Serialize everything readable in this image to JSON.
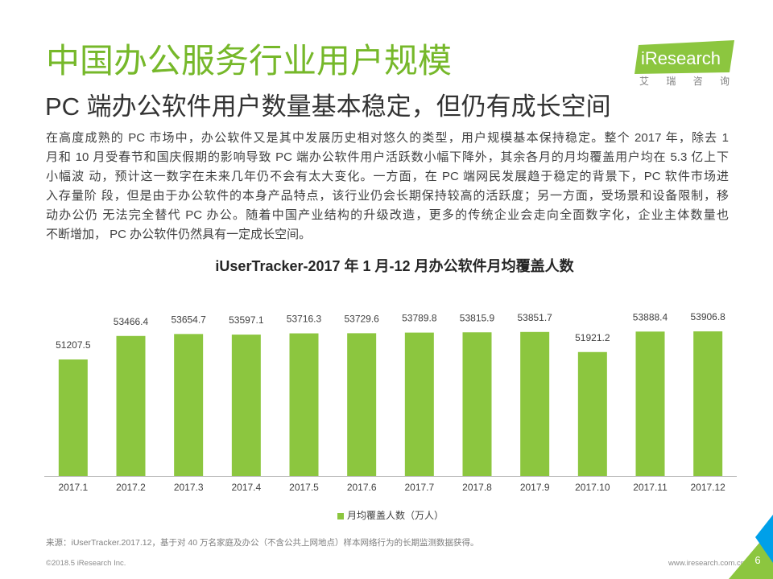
{
  "header": {
    "title": "中国办公服务行业用户规模",
    "subtitle": "PC 端办公软件用户数量基本稳定，但仍有成长空间"
  },
  "logo": {
    "brand": "iResearch",
    "chinese": "艾 瑞 咨 询"
  },
  "body": {
    "lines": [
      "在高度成熟的 PC 市场中，办公软件又是其中发展历史相对悠久的类型，用户规模基本保持稳定。整个 2017 年，除去 1",
      "月和 10 月受春节和国庆假期的影响导致 PC 端办公软件用户活跃数小幅下降外，其余各月的月均覆盖用户均在 5.3 亿上下",
      "小幅波 动，预计这一数字在未来几年仍不会有太大变化。一方面，在 PC 端网民发展趋于稳定的背景下，PC 软件市场进",
      "入存量阶 段，但是由于办公软件的本身产品特点，该行业仍会长期保持较高的活跃度；另一方面，受场景和设备限制，移",
      "动办公仍 无法完全替代 PC 办公。随着中国产业结构的升级改造，更多的传统企业会走向全面数字化，企业主体数量也",
      "不断增加， PC 办公软件仍然具有一定成长空间。"
    ]
  },
  "chart_data": {
    "type": "bar",
    "title": "iUserTracker-2017 年 1 月-12 月办公软件月均覆盖人数",
    "categories": [
      "2017.1",
      "2017.2",
      "2017.3",
      "2017.4",
      "2017.5",
      "2017.6",
      "2017.7",
      "2017.8",
      "2017.9",
      "2017.10",
      "2017.11",
      "2017.12"
    ],
    "series": [
      {
        "name": "月均覆盖人数（万人）",
        "values": [
          51207.5,
          53466.4,
          53654.7,
          53597.1,
          53716.3,
          53729.6,
          53789.8,
          53815.9,
          53851.7,
          51921.2,
          53888.4,
          53906.8
        ]
      }
    ],
    "ylim": [
      40000,
      56000
    ],
    "grid": false,
    "legend": "bottom-center",
    "data_labels": true,
    "colors": {
      "bar": "#8cc63f",
      "axis": "#bfbfbf"
    }
  },
  "footer": {
    "source": "来源：iUserTracker.2017.12，基于对 40 万名家庭及办公（不含公共上网地点）样本网络行为的长期监测数据获得。",
    "copyright": "©2018.5 iResearch Inc.",
    "url": "www.iresearch.com.cn",
    "page_number": "6"
  },
  "colors": {
    "title": "#76b82a",
    "brand_green": "#8cc63f",
    "brand_cyan": "#00a0e9",
    "text": "#404040"
  }
}
